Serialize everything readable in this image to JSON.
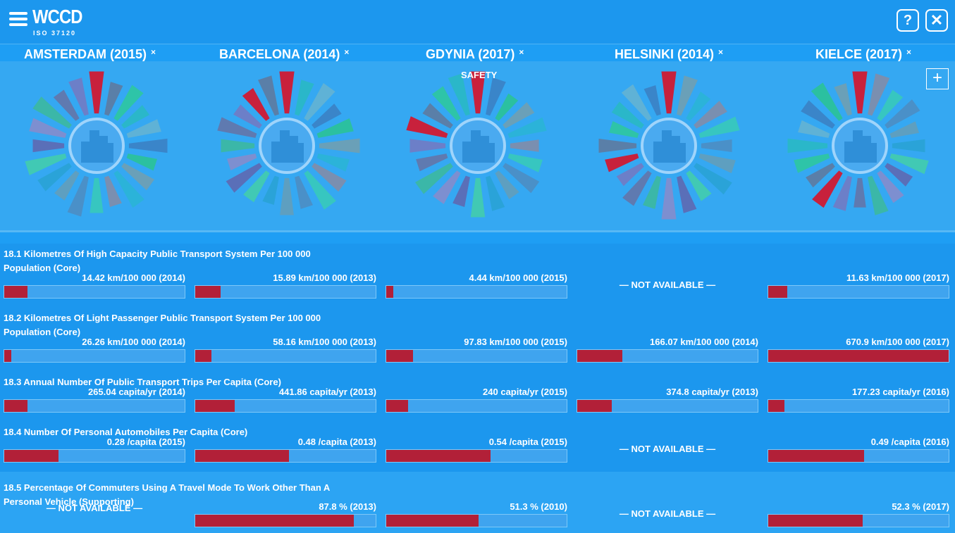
{
  "header": {
    "logo": "WCCD",
    "logo_sub": "ISO 37120",
    "help_label": "?",
    "close_label": "✕"
  },
  "cities": [
    {
      "name": "AMSTERDAM (2015)",
      "close": "×"
    },
    {
      "name": "BARCELONA (2014)",
      "close": "×"
    },
    {
      "name": "GDYNIA (2017)",
      "close": "×"
    },
    {
      "name": "HELSINKI (2014)",
      "close": "×"
    },
    {
      "name": "KIELCE (2017)",
      "close": "×"
    }
  ],
  "wheel": {
    "hover_label": "SAFETY",
    "add_label": "+"
  },
  "indicators": [
    {
      "title": "18.1 Kilometres Of High Capacity Public Transport System Per 100 000 Population (Core)",
      "values": [
        {
          "text": "14.42 km/100 000 (2014)",
          "pct": 0.13
        },
        {
          "text": "15.89 km/100 000 (2013)",
          "pct": 0.14
        },
        {
          "text": "4.44 km/100 000 (2015)",
          "pct": 0.04
        },
        {
          "text": "— NOT AVAILABLE —",
          "pct": null
        },
        {
          "text": "11.63 km/100 000 (2017)",
          "pct": 0.105
        }
      ]
    },
    {
      "title": "18.2 Kilometres Of Light Passenger Public Transport System Per 100 000 Population (Core)",
      "values": [
        {
          "text": "26.26 km/100 000 (2014)",
          "pct": 0.04
        },
        {
          "text": "58.16 km/100 000 (2013)",
          "pct": 0.09
        },
        {
          "text": "97.83 km/100 000 (2015)",
          "pct": 0.15
        },
        {
          "text": "166.07 km/100 000 (2014)",
          "pct": 0.25
        },
        {
          "text": "670.9 km/100 000 (2017)",
          "pct": 1.0
        }
      ]
    },
    {
      "title": "18.3 Annual Number Of Public Transport Trips Per Capita (Core)",
      "values": [
        {
          "text": "265.04 capita/yr (2014)",
          "pct": 0.13
        },
        {
          "text": "441.86 capita/yr (2013)",
          "pct": 0.22
        },
        {
          "text": "240 capita/yr (2015)",
          "pct": 0.12
        },
        {
          "text": "374.8 capita/yr (2013)",
          "pct": 0.19
        },
        {
          "text": "177.23 capita/yr (2016)",
          "pct": 0.09
        }
      ]
    },
    {
      "title": "18.4 Number Of Personal Automobiles Per Capita (Core)",
      "values": [
        {
          "text": "0.28 /capita (2015)",
          "pct": 0.3
        },
        {
          "text": "0.48 /capita (2013)",
          "pct": 0.52
        },
        {
          "text": "0.54 /capita (2015)",
          "pct": 0.58
        },
        {
          "text": "— NOT AVAILABLE —",
          "pct": null
        },
        {
          "text": "0.49 /capita (2016)",
          "pct": 0.53
        }
      ]
    },
    {
      "title": "18.5 Percentage Of Commuters Using A Travel Mode To Work Other Than A Personal Vehicle (Supporting)",
      "values": [
        {
          "text": "— NOT AVAILABLE —",
          "pct": null
        },
        {
          "text": "87.8 % (2013)",
          "pct": 0.878
        },
        {
          "text": "51.3 % (2010)",
          "pct": 0.513
        },
        {
          "text": "— NOT AVAILABLE —",
          "pct": null
        },
        {
          "text": "52.3 % (2017)",
          "pct": 0.523
        }
      ]
    }
  ],
  "colors": {
    "bar_fill": "#b22038",
    "background": "#1c97ee",
    "highlight": "#c8213c"
  }
}
